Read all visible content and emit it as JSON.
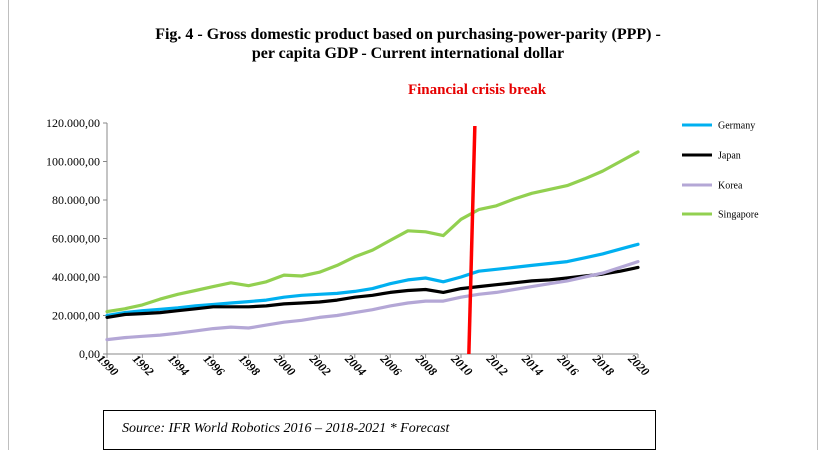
{
  "chart_data": {
    "type": "line",
    "title_line1": "Fig. 4 - Gross domestic product based on purchasing-power-parity (PPP) -",
    "title_line2": "per capita GDP   -  Current international dollar",
    "annotation": "Financial crisis break",
    "annotation_x": 2010.5,
    "ylim": [
      0,
      120000
    ],
    "yticks": [
      0,
      20000,
      40000,
      60000,
      80000,
      100000,
      120000
    ],
    "ytick_labels": [
      "0,00",
      "20.000,00",
      "40.000,00",
      "60.000,00",
      "80.000,00",
      "100.000,00",
      "120.000,00"
    ],
    "xlim": [
      1990,
      2020
    ],
    "xtick_labels": [
      "1990",
      "1992",
      "1994",
      "1996",
      "1998",
      "2000",
      "2002",
      "2004",
      "2006",
      "2008",
      "2010",
      "2012",
      "2014",
      "2016",
      "2018",
      "2020"
    ],
    "x": [
      1990,
      1991,
      1992,
      1993,
      1994,
      1995,
      1996,
      1997,
      1998,
      1999,
      2000,
      2001,
      2002,
      2003,
      2004,
      2005,
      2006,
      2007,
      2008,
      2009,
      2010,
      2011,
      2012,
      2013,
      2014,
      2015,
      2016,
      2017,
      2018,
      2019,
      2020
    ],
    "legend_position": "right",
    "series": [
      {
        "name": "Germany",
        "color": "#00b0f0",
        "values": [
          20000,
          21500,
          22500,
          23200,
          24000,
          25000,
          25700,
          26500,
          27200,
          28000,
          29500,
          30500,
          31000,
          31500,
          32500,
          34000,
          36500,
          38500,
          39500,
          37500,
          40000,
          43000,
          44000,
          45000,
          46000,
          47000,
          48000,
          50000,
          52000,
          54500,
          57000
        ]
      },
      {
        "name": "Japan",
        "color": "#000000",
        "values": [
          19000,
          20500,
          21000,
          21500,
          22500,
          23500,
          24500,
          24500,
          24500,
          25000,
          26000,
          26500,
          27000,
          28000,
          29500,
          30500,
          32000,
          33000,
          33500,
          32000,
          34000,
          35000,
          36000,
          37000,
          38000,
          38500,
          39500,
          40500,
          41500,
          43000,
          45000
        ]
      },
      {
        "name": "Korea",
        "color": "#b4a7d6",
        "values": [
          7500,
          8500,
          9200,
          9800,
          10800,
          12000,
          13200,
          14000,
          13500,
          15000,
          16500,
          17500,
          19000,
          20000,
          21500,
          23000,
          25000,
          26500,
          27500,
          27500,
          29500,
          31000,
          32000,
          33500,
          35000,
          36500,
          38000,
          40000,
          42000,
          45000,
          48000
        ]
      },
      {
        "name": "Singapore",
        "color": "#92d050",
        "values": [
          22000,
          23500,
          25500,
          28500,
          31000,
          33000,
          35000,
          37000,
          35500,
          37500,
          41000,
          40500,
          42500,
          46000,
          50500,
          54000,
          59000,
          64000,
          63500,
          61500,
          70000,
          75000,
          77000,
          80500,
          83500,
          85500,
          87500,
          91000,
          95000,
          100000,
          105000
        ]
      }
    ]
  },
  "source": "Source: IFR World Robotics 2016 – 2018-2021 * Forecast"
}
